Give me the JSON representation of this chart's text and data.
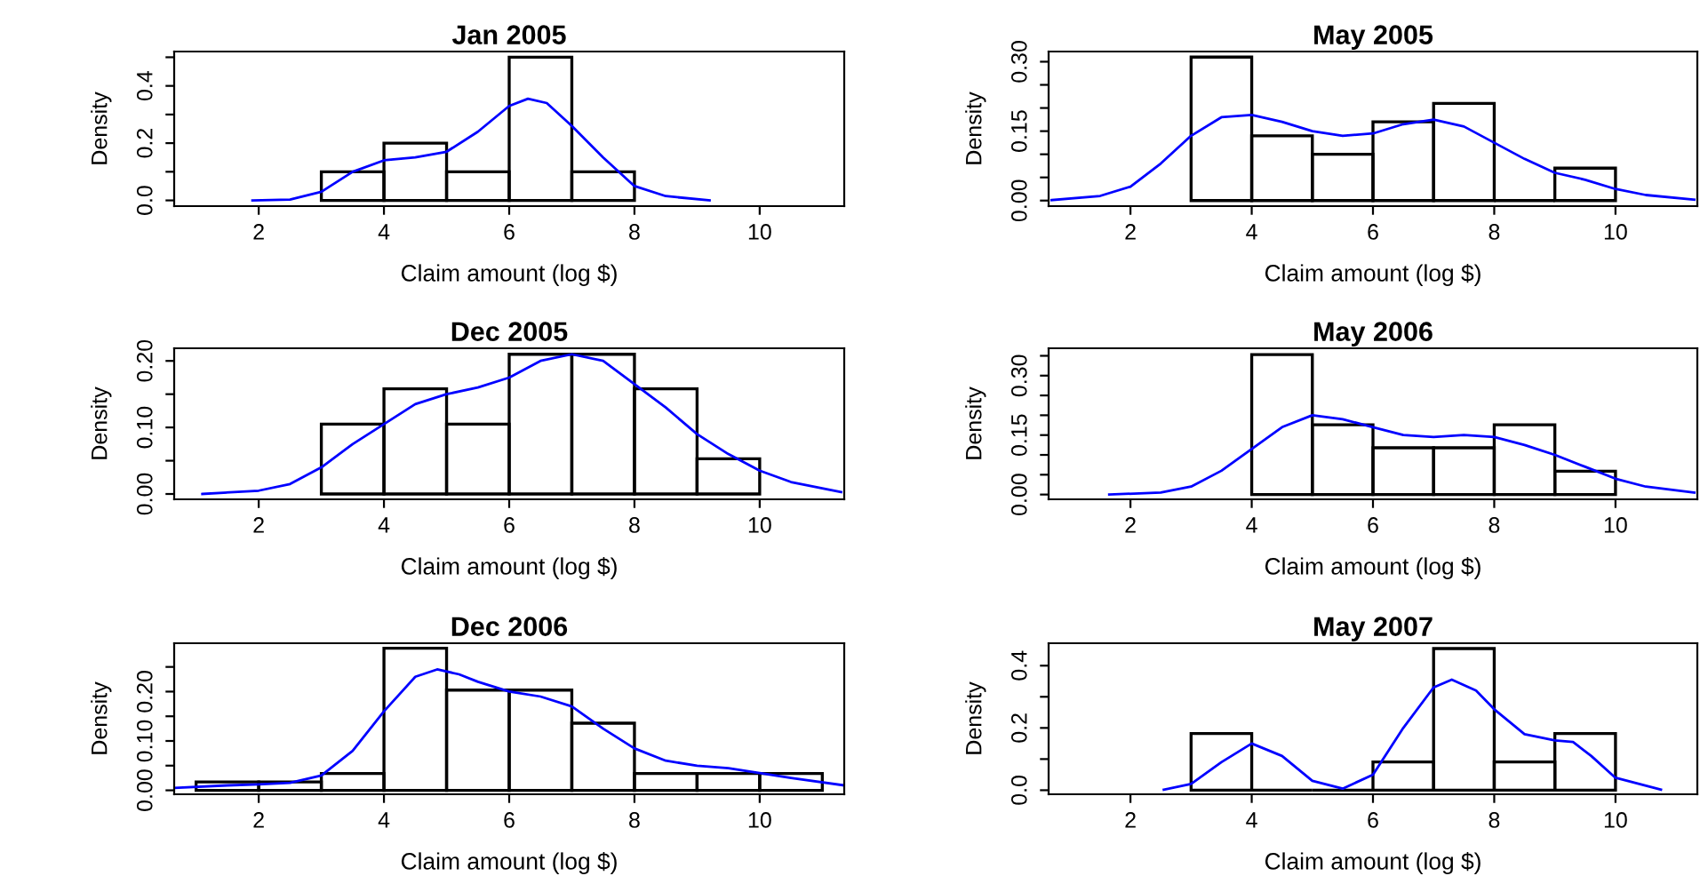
{
  "chart_data": [
    {
      "type": "histogram",
      "title": "Jan 2005",
      "xlabel": "Claim amount (log $)",
      "ylabel": "Density",
      "bins": [
        3,
        4,
        5,
        6,
        7,
        8
      ],
      "values": [
        0.1,
        0.2,
        0.1,
        0.5,
        0.1
      ],
      "color": "#000000",
      "xlim": [
        0.65,
        11.35
      ],
      "xticks": [
        2,
        4,
        6,
        8,
        10
      ],
      "ylim": [
        -0.02,
        0.52
      ],
      "yticks": [
        {
          "value": 0,
          "label": "0.0"
        },
        {
          "value": 0.1,
          "label": null
        },
        0.2,
        {
          "value": 0.3,
          "label": null
        },
        0.4,
        {
          "value": 0.5,
          "label": null
        }
      ],
      "grid": false,
      "series": [
        {
          "type": "line",
          "color": "#0000ff",
          "x": [
            1.9,
            2.5,
            3,
            3.5,
            4,
            4.5,
            5,
            5.5,
            6,
            6.3,
            6.6,
            7,
            7.5,
            8,
            8.5,
            9.2
          ],
          "values": [
            0,
            0.003,
            0.03,
            0.1,
            0.14,
            0.15,
            0.17,
            0.24,
            0.33,
            0.355,
            0.34,
            0.26,
            0.15,
            0.05,
            0.015,
            0
          ]
        }
      ]
    },
    {
      "type": "histogram",
      "title": "May 2005",
      "xlabel": "Claim amount (log $)",
      "ylabel": "Density",
      "bins": [
        3,
        4,
        5,
        6,
        7,
        8,
        9,
        10
      ],
      "values": [
        0.31,
        0.14,
        0.1,
        0.17,
        0.21,
        0,
        0.07
      ],
      "color": "#000000",
      "xlim": [
        0.65,
        11.35
      ],
      "xticks": [
        2,
        4,
        6,
        8,
        10
      ],
      "ylim": [
        -0.012,
        0.322
      ],
      "yticks": [
        {
          "value": 0,
          "label": "0.00"
        },
        {
          "value": 0.05,
          "label": null
        },
        {
          "value": 0.1,
          "label": null
        },
        0.15,
        {
          "value": 0.2,
          "label": null
        },
        {
          "value": 0.25,
          "label": null
        },
        {
          "value": 0.3,
          "label": "0.30"
        }
      ],
      "grid": false,
      "series": [
        {
          "type": "line",
          "color": "#0000ff",
          "x": [
            0.7,
            1.5,
            2,
            2.5,
            3,
            3.5,
            4,
            4.5,
            5,
            5.5,
            6,
            6.5,
            7,
            7.5,
            8,
            8.5,
            9,
            9.5,
            10,
            10.5,
            11.3
          ],
          "values": [
            0.001,
            0.01,
            0.03,
            0.08,
            0.14,
            0.18,
            0.185,
            0.17,
            0.15,
            0.14,
            0.145,
            0.165,
            0.175,
            0.16,
            0.125,
            0.09,
            0.06,
            0.045,
            0.025,
            0.012,
            0.002
          ]
        }
      ]
    },
    {
      "type": "histogram",
      "title": "Dec 2005",
      "xlabel": "Claim amount (log $)",
      "ylabel": "Density",
      "bins": [
        3,
        4,
        5,
        6,
        7,
        8,
        9,
        10
      ],
      "values": [
        0.105,
        0.158,
        0.105,
        0.21,
        0.21,
        0.158,
        0.053
      ],
      "color": "#000000",
      "xlim": [
        0.65,
        11.35
      ],
      "xticks": [
        2,
        4,
        6,
        8,
        10
      ],
      "ylim": [
        -0.008,
        0.219
      ],
      "yticks": [
        {
          "value": 0,
          "label": "0.00"
        },
        {
          "value": 0.05,
          "label": null
        },
        {
          "value": 0.1,
          "label": "0.10"
        },
        {
          "value": 0.15,
          "label": null
        },
        {
          "value": 0.2,
          "label": "0.20"
        }
      ],
      "grid": false,
      "series": [
        {
          "type": "line",
          "color": "#0000ff",
          "x": [
            1.1,
            2,
            2.5,
            3,
            3.5,
            4,
            4.5,
            5,
            5.5,
            6,
            6.5,
            7,
            7.5,
            8,
            8.5,
            9,
            9.5,
            10,
            10.5,
            11.3
          ],
          "values": [
            0,
            0.005,
            0.015,
            0.04,
            0.075,
            0.105,
            0.135,
            0.15,
            0.16,
            0.175,
            0.2,
            0.21,
            0.2,
            0.165,
            0.13,
            0.09,
            0.06,
            0.035,
            0.018,
            0.003
          ]
        }
      ]
    },
    {
      "type": "histogram",
      "title": "May 2006",
      "xlabel": "Claim amount (log $)",
      "ylabel": "Density",
      "bins": [
        4,
        5,
        6,
        7,
        8,
        9,
        10
      ],
      "values": [
        0.353,
        0.176,
        0.118,
        0.118,
        0.176,
        0.059
      ],
      "color": "#000000",
      "xlim": [
        0.65,
        11.35
      ],
      "xticks": [
        2,
        4,
        6,
        8,
        10
      ],
      "ylim": [
        -0.012,
        0.369
      ],
      "yticks": [
        {
          "value": 0,
          "label": "0.00"
        },
        {
          "value": 0.05,
          "label": null
        },
        {
          "value": 0.1,
          "label": null
        },
        0.15,
        {
          "value": 0.2,
          "label": null
        },
        {
          "value": 0.25,
          "label": null
        },
        {
          "value": 0.3,
          "label": "0.30"
        },
        {
          "value": 0.35,
          "label": null
        }
      ],
      "grid": false,
      "series": [
        {
          "type": "line",
          "color": "#0000ff",
          "x": [
            1.65,
            2.5,
            3,
            3.5,
            4,
            4.5,
            5,
            5.5,
            6,
            6.5,
            7,
            7.5,
            8,
            8.5,
            9,
            9.5,
            10,
            10.5,
            11.3
          ],
          "values": [
            0,
            0.005,
            0.02,
            0.06,
            0.115,
            0.17,
            0.2,
            0.19,
            0.17,
            0.15,
            0.145,
            0.15,
            0.145,
            0.125,
            0.1,
            0.07,
            0.04,
            0.02,
            0.005
          ]
        }
      ]
    },
    {
      "type": "histogram",
      "title": "Dec 2006",
      "xlabel": "Claim amount (log $)",
      "ylabel": "Density",
      "bins": [
        1,
        2,
        3,
        4,
        5,
        6,
        7,
        8,
        9,
        10,
        11
      ],
      "values": [
        0.017,
        0.017,
        0.034,
        0.288,
        0.203,
        0.203,
        0.136,
        0.034,
        0.034,
        0.034
      ],
      "color": "#000000",
      "xlim": [
        0.65,
        11.35
      ],
      "xticks": [
        2,
        4,
        6,
        8,
        10
      ],
      "ylim": [
        -0.008,
        0.298
      ],
      "yticks": [
        {
          "value": 0,
          "label": "0.00"
        },
        {
          "value": 0.05,
          "label": null
        },
        {
          "value": 0.1,
          "label": "0.10"
        },
        {
          "value": 0.15,
          "label": null
        },
        {
          "value": 0.2,
          "label": "0.20"
        },
        {
          "value": 0.25,
          "label": null
        }
      ],
      "grid": false,
      "series": [
        {
          "type": "line",
          "color": "#0000ff",
          "x": [
            0.65,
            1.5,
            2,
            2.5,
            3,
            3.5,
            4,
            4.5,
            4.85,
            5.2,
            5.5,
            6,
            6.5,
            7,
            7.5,
            8,
            8.5,
            9,
            9.5,
            10,
            10.5,
            11.35
          ],
          "values": [
            0.005,
            0.01,
            0.012,
            0.015,
            0.03,
            0.08,
            0.16,
            0.23,
            0.245,
            0.235,
            0.22,
            0.2,
            0.19,
            0.17,
            0.125,
            0.085,
            0.06,
            0.05,
            0.045,
            0.035,
            0.025,
            0.01
          ]
        }
      ]
    },
    {
      "type": "histogram",
      "title": "May 2007",
      "xlabel": "Claim amount (log $)",
      "ylabel": "Density",
      "bins": [
        3,
        4,
        5,
        6,
        7,
        8,
        9,
        10
      ],
      "values": [
        0.182,
        0,
        0,
        0.091,
        0.455,
        0.091,
        0.182
      ],
      "color": "#000000",
      "xlim": [
        0.65,
        11.35
      ],
      "xticks": [
        2,
        4,
        6,
        8,
        10
      ],
      "ylim": [
        -0.013,
        0.472
      ],
      "yticks": [
        {
          "value": 0,
          "label": "0.0"
        },
        {
          "value": 0.1,
          "label": null
        },
        0.2,
        {
          "value": 0.3,
          "label": null
        },
        0.4
      ],
      "grid": false,
      "series": [
        {
          "type": "line",
          "color": "#0000ff",
          "x": [
            2.55,
            3,
            3.5,
            4,
            4.5,
            5,
            5.5,
            6,
            6.5,
            7,
            7.3,
            7.7,
            8,
            8.5,
            9,
            9.3,
            9.6,
            10,
            10.75
          ],
          "values": [
            0.002,
            0.02,
            0.09,
            0.15,
            0.11,
            0.03,
            0.005,
            0.05,
            0.2,
            0.33,
            0.355,
            0.32,
            0.26,
            0.18,
            0.16,
            0.155,
            0.11,
            0.04,
            0.002
          ]
        }
      ]
    }
  ]
}
